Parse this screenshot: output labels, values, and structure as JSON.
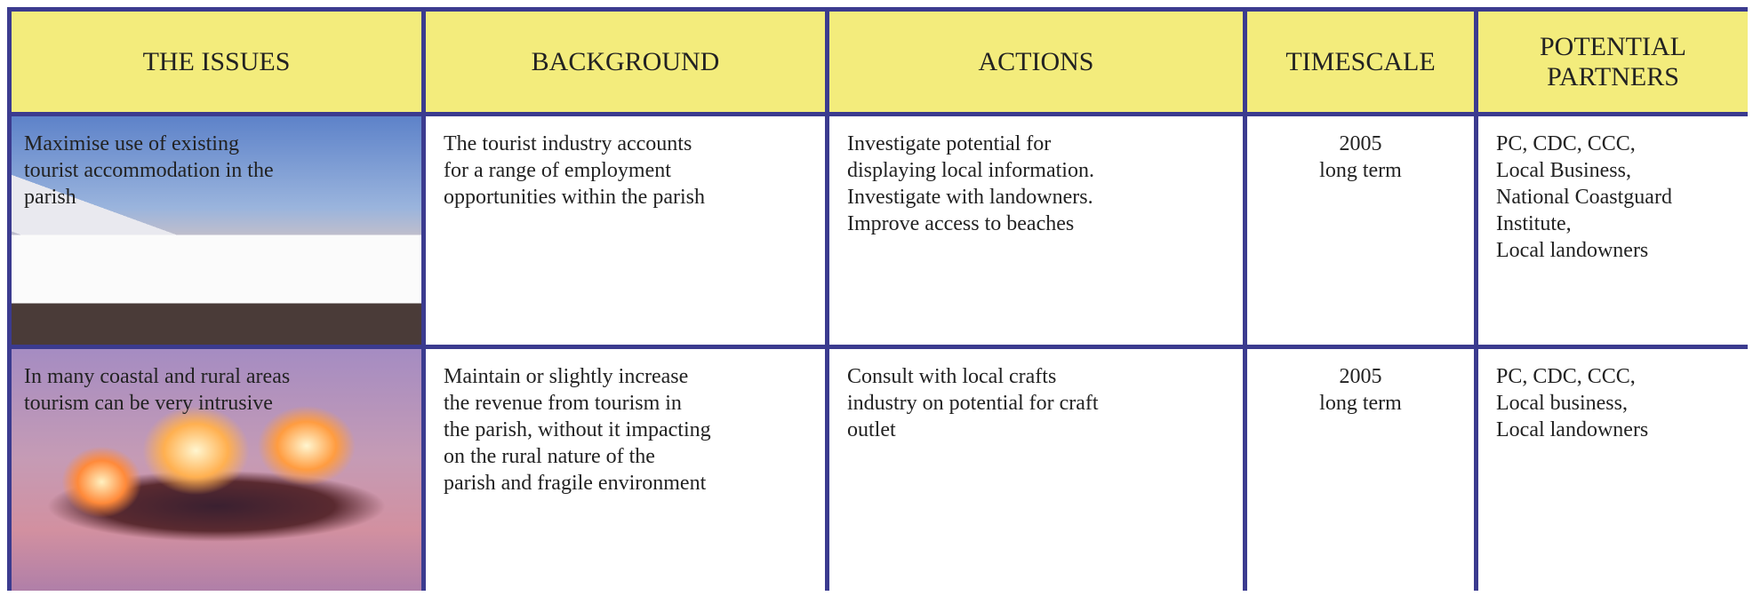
{
  "table": {
    "header": [
      "THE ISSUES",
      "BACKGROUND",
      "ACTIONS",
      "TIMESCALE",
      "POTENTIAL PARTNERS"
    ],
    "rows": [
      [
        [
          "Maximise use of existing",
          "tourist accommodation in the",
          "parish"
        ],
        [
          "The tourist industry accounts",
          "for a range of employment",
          "opportunities within the parish"
        ],
        [
          "Investigate potential for",
          "displaying local information.",
          "Investigate with landowners.",
          "Improve access to beaches"
        ],
        [
          "2005",
          "long term"
        ],
        [
          "PC, CDC, CCC,",
          "Local Business,",
          "National Coastguard",
          "Institute,",
          "Local landowners"
        ]
      ],
      [
        [
          "In many coastal and rural areas",
          "tourism can be very intrusive"
        ],
        [
          "Maintain or slightly increase",
          "the revenue from tourism in",
          "the parish, without it impacting",
          "on the rural nature of the",
          "parish and fragile environment"
        ],
        [
          "Consult with local crafts",
          "industry on potential for craft",
          "outlet"
        ],
        [
          "2005",
          "long term"
        ],
        [
          "PC, CDC, CCC,",
          "Local business,",
          "Local landowners"
        ]
      ]
    ]
  }
}
